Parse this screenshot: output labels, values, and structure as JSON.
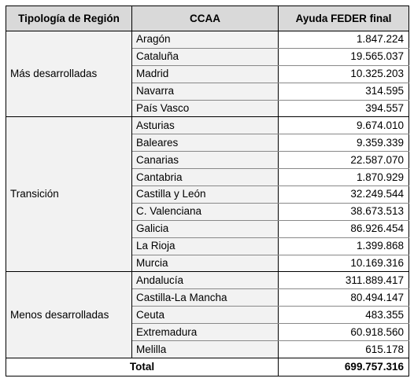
{
  "headers": {
    "region": "Tipología de Región",
    "ccaa": "CCAA",
    "amount": "Ayuda FEDER final"
  },
  "groups": [
    {
      "region": "Más desarrolladas",
      "rows": [
        {
          "ccaa": "Aragón",
          "amount": "1.847.224"
        },
        {
          "ccaa": "Cataluña",
          "amount": "19.565.037"
        },
        {
          "ccaa": "Madrid",
          "amount": "10.325.203"
        },
        {
          "ccaa": "Navarra",
          "amount": "314.595"
        },
        {
          "ccaa": "País Vasco",
          "amount": "394.557"
        }
      ]
    },
    {
      "region": "Transición",
      "rows": [
        {
          "ccaa": "Asturias",
          "amount": "9.674.010"
        },
        {
          "ccaa": "Baleares",
          "amount": "9.359.339"
        },
        {
          "ccaa": "Canarias",
          "amount": "22.587.070"
        },
        {
          "ccaa": "Cantabria",
          "amount": "1.870.929"
        },
        {
          "ccaa": "Castilla y León",
          "amount": "32.249.544"
        },
        {
          "ccaa": "C. Valenciana",
          "amount": "38.673.513"
        },
        {
          "ccaa": "Galicia",
          "amount": "86.926.454"
        },
        {
          "ccaa": "La Rioja",
          "amount": "1.399.868"
        },
        {
          "ccaa": "Murcia",
          "amount": "10.169.316"
        }
      ]
    },
    {
      "region": "Menos desarrolladas",
      "rows": [
        {
          "ccaa": "Andalucía",
          "amount": "311.889.417"
        },
        {
          "ccaa": "Castilla-La Mancha",
          "amount": "80.494.147"
        },
        {
          "ccaa": "Ceuta",
          "amount": "483.355"
        },
        {
          "ccaa": "Extremadura",
          "amount": "60.918.560"
        },
        {
          "ccaa": "Melilla",
          "amount": "615.178"
        }
      ]
    }
  ],
  "total": {
    "label": "Total",
    "amount": "699.757.316"
  }
}
